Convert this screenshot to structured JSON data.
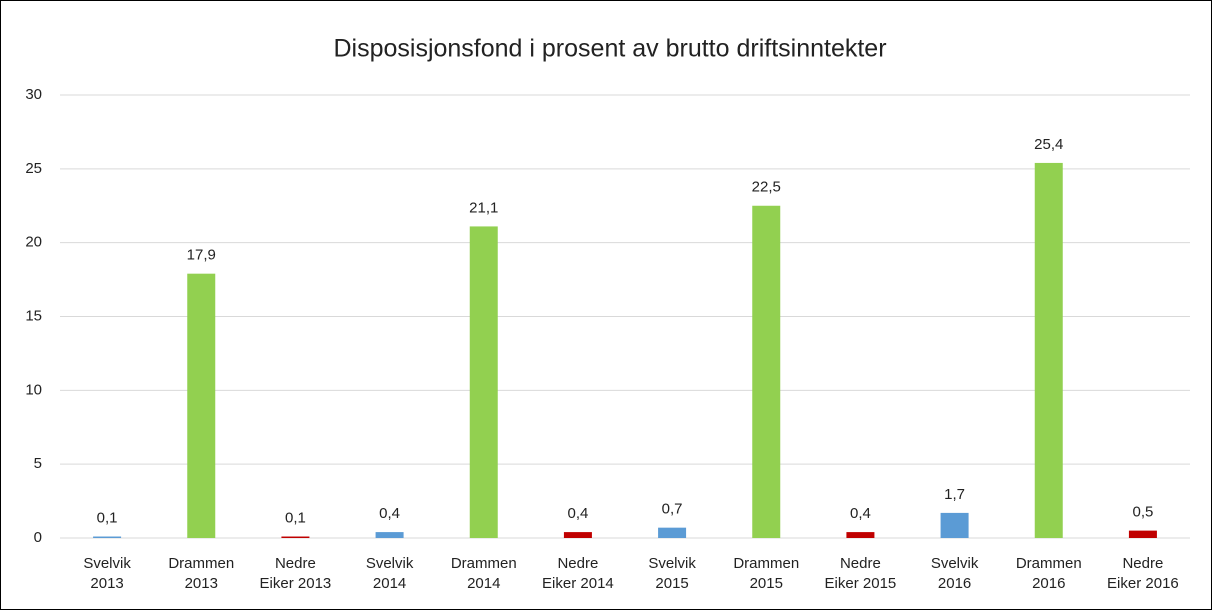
{
  "chart_data": {
    "type": "bar",
    "title": "Disposisjonsfond i prosent av brutto driftsinntekter",
    "categories": [
      "Svelvik\n2013",
      "Drammen\n2013",
      "Nedre\nEiker 2013",
      "Svelvik\n2014",
      "Drammen\n2014",
      "Nedre\nEiker 2014",
      "Svelvik\n2015",
      "Drammen\n2015",
      "Nedre\nEiker 2015",
      "Svelvik\n2016",
      "Drammen\n2016",
      "Nedre\nEiker 2016"
    ],
    "values": [
      0.1,
      17.9,
      0.1,
      0.4,
      21.1,
      0.4,
      0.7,
      22.5,
      0.4,
      1.7,
      25.4,
      0.5
    ],
    "value_labels": [
      "0,1",
      "17,9",
      "0,1",
      "0,4",
      "21,1",
      "0,4",
      "0,7",
      "22,5",
      "0,4",
      "1,7",
      "25,4",
      "0,5"
    ],
    "colors": [
      "#5b9bd5",
      "#92d050",
      "#c00000",
      "#5b9bd5",
      "#92d050",
      "#c00000",
      "#5b9bd5",
      "#92d050",
      "#c00000",
      "#5b9bd5",
      "#92d050",
      "#c00000"
    ],
    "ylim": [
      0,
      30
    ],
    "yticks": [
      0,
      5,
      10,
      15,
      20,
      25,
      30
    ],
    "grid": true
  }
}
